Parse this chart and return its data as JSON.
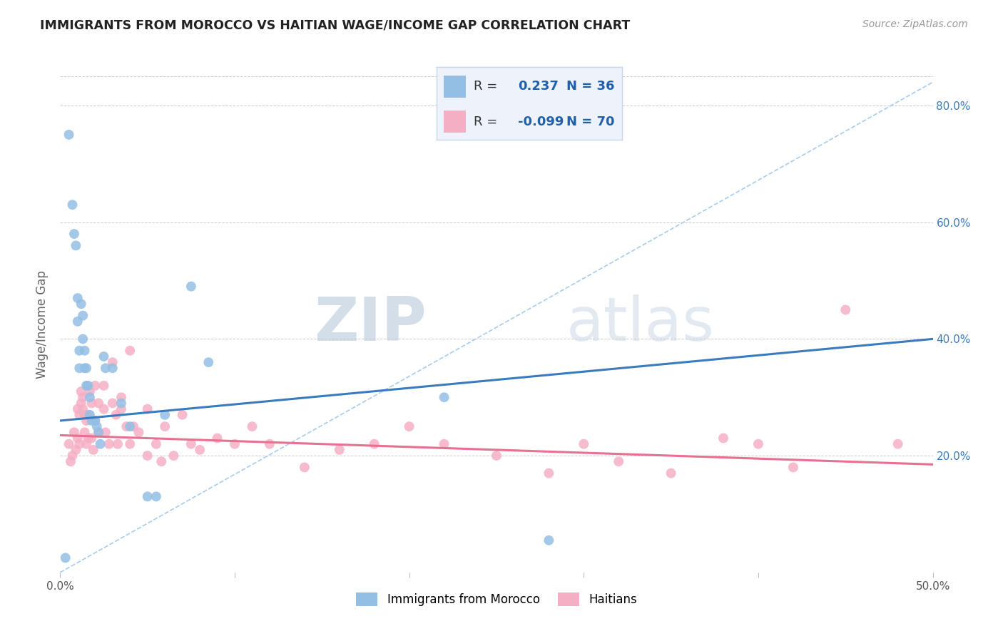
{
  "title": "IMMIGRANTS FROM MOROCCO VS HAITIAN WAGE/INCOME GAP CORRELATION CHART",
  "source": "Source: ZipAtlas.com",
  "ylabel": "Wage/Income Gap",
  "xlim": [
    0.0,
    0.5
  ],
  "ylim": [
    0.0,
    0.85
  ],
  "morocco_color": "#93bfe4",
  "haiti_color": "#f5afc4",
  "morocco_line_color": "#3a7bbf",
  "haiti_line_color": "#e87090",
  "dashed_line_color": "#a8ccee",
  "legend_box_color": "#eef3fb",
  "legend_text_color": "#2060aa",
  "watermark_zip_color": "#b8cce0",
  "watermark_atlas_color": "#c8d8ec",
  "R_morocco": 0.237,
  "N_morocco": 36,
  "R_haiti": -0.099,
  "N_haiti": 70,
  "morocco_line_x0": 0.0,
  "morocco_line_y0": 0.26,
  "morocco_line_x1": 0.5,
  "morocco_line_y1": 0.4,
  "haiti_line_x0": 0.0,
  "haiti_line_y0": 0.235,
  "haiti_line_x1": 0.5,
  "haiti_line_y1": 0.185,
  "dashed_line_x0": 0.0,
  "dashed_line_y0": 0.0,
  "dashed_line_x1": 0.5,
  "dashed_line_y1": 0.84,
  "morocco_scatter_x": [
    0.003,
    0.005,
    0.007,
    0.008,
    0.009,
    0.01,
    0.01,
    0.011,
    0.011,
    0.012,
    0.013,
    0.013,
    0.014,
    0.014,
    0.015,
    0.015,
    0.016,
    0.017,
    0.017,
    0.018,
    0.02,
    0.021,
    0.022,
    0.023,
    0.025,
    0.026,
    0.03,
    0.035,
    0.04,
    0.05,
    0.055,
    0.06,
    0.075,
    0.085,
    0.22,
    0.28
  ],
  "morocco_scatter_y": [
    0.025,
    0.75,
    0.63,
    0.58,
    0.56,
    0.47,
    0.43,
    0.38,
    0.35,
    0.46,
    0.44,
    0.4,
    0.38,
    0.35,
    0.35,
    0.32,
    0.32,
    0.3,
    0.27,
    0.26,
    0.26,
    0.25,
    0.24,
    0.22,
    0.37,
    0.35,
    0.35,
    0.29,
    0.25,
    0.13,
    0.13,
    0.27,
    0.49,
    0.36,
    0.3,
    0.055
  ],
  "haiti_scatter_x": [
    0.005,
    0.006,
    0.007,
    0.008,
    0.009,
    0.01,
    0.01,
    0.011,
    0.011,
    0.012,
    0.012,
    0.013,
    0.013,
    0.014,
    0.014,
    0.015,
    0.015,
    0.016,
    0.016,
    0.017,
    0.018,
    0.018,
    0.019,
    0.02,
    0.02,
    0.022,
    0.022,
    0.025,
    0.025,
    0.026,
    0.028,
    0.03,
    0.03,
    0.032,
    0.033,
    0.035,
    0.035,
    0.038,
    0.04,
    0.04,
    0.042,
    0.045,
    0.05,
    0.05,
    0.055,
    0.058,
    0.06,
    0.065,
    0.07,
    0.075,
    0.08,
    0.09,
    0.1,
    0.11,
    0.12,
    0.14,
    0.16,
    0.18,
    0.2,
    0.22,
    0.25,
    0.28,
    0.3,
    0.32,
    0.35,
    0.38,
    0.4,
    0.42,
    0.45,
    0.48
  ],
  "haiti_scatter_y": [
    0.22,
    0.19,
    0.2,
    0.24,
    0.21,
    0.28,
    0.23,
    0.27,
    0.22,
    0.31,
    0.29,
    0.3,
    0.28,
    0.27,
    0.24,
    0.26,
    0.22,
    0.27,
    0.23,
    0.31,
    0.29,
    0.23,
    0.21,
    0.26,
    0.32,
    0.29,
    0.24,
    0.32,
    0.28,
    0.24,
    0.22,
    0.29,
    0.36,
    0.27,
    0.22,
    0.3,
    0.28,
    0.25,
    0.38,
    0.22,
    0.25,
    0.24,
    0.2,
    0.28,
    0.22,
    0.19,
    0.25,
    0.2,
    0.27,
    0.22,
    0.21,
    0.23,
    0.22,
    0.25,
    0.22,
    0.18,
    0.21,
    0.22,
    0.25,
    0.22,
    0.2,
    0.17,
    0.22,
    0.19,
    0.17,
    0.23,
    0.22,
    0.18,
    0.45,
    0.22
  ]
}
